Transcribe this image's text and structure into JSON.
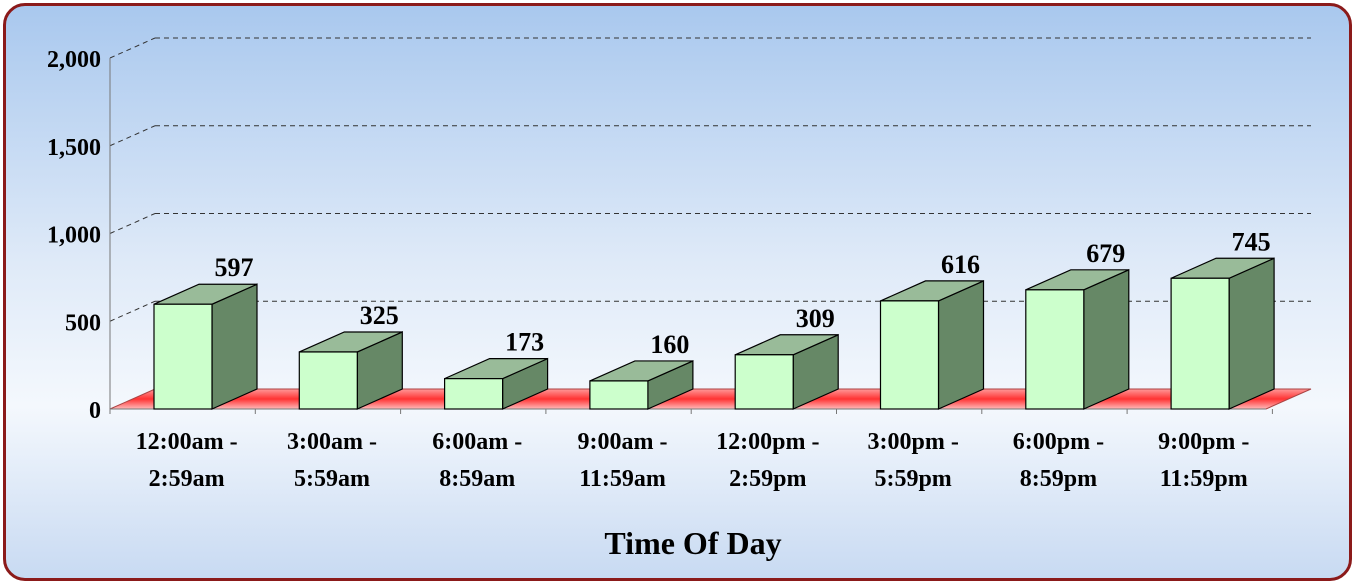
{
  "chart_data": {
    "type": "bar",
    "categories": [
      [
        "12:00am -",
        "2:59am"
      ],
      [
        "3:00am -",
        "5:59am"
      ],
      [
        "6:00am -",
        "8:59am"
      ],
      [
        "9:00am -",
        "11:59am"
      ],
      [
        "12:00pm -",
        "2:59pm"
      ],
      [
        "3:00pm -",
        "5:59pm"
      ],
      [
        "6:00pm -",
        "8:59pm"
      ],
      [
        "9:00pm -",
        "11:59pm"
      ]
    ],
    "values": [
      597,
      325,
      173,
      160,
      309,
      616,
      679,
      745
    ],
    "value_labels": [
      "597",
      "325",
      "173",
      "160",
      "309",
      "616",
      "679",
      "745"
    ],
    "xlabel": "Time Of Day",
    "ylabel": "",
    "ylim": [
      0,
      2000
    ],
    "yticks": [
      0,
      500,
      1000,
      1500,
      2000
    ],
    "ytick_labels": [
      "0",
      "500",
      "1,000",
      "1,500",
      "2,000"
    ],
    "grid": true,
    "style": "3d",
    "colors": {
      "bar_front": "#ccffcc",
      "bar_side": "#668866",
      "bar_top": "#99bb99",
      "floor": "#ff3333",
      "frame": "#8b1a1a"
    }
  }
}
